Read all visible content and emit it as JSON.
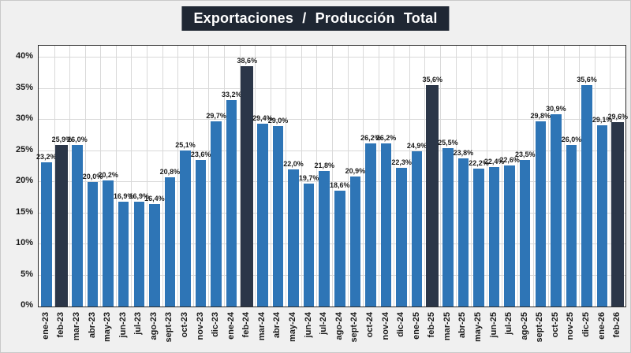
{
  "chart_data": {
    "type": "bar",
    "title": "Exportaciones / Producción Total",
    "categories": [
      "ene-23",
      "feb-23",
      "mar-23",
      "abr-23",
      "may-23",
      "jun-23",
      "jul-23",
      "ago-23",
      "sept-23",
      "oct-23",
      "nov-23",
      "dic-23",
      "ene-24",
      "feb-24",
      "mar-24",
      "abr-24",
      "may-24",
      "jun-24",
      "jul-24",
      "ago-24",
      "sept-24",
      "oct-24",
      "nov-24",
      "dic-24",
      "ene-25",
      "feb-25",
      "mar-25",
      "abr-25",
      "may-25",
      "jun-25",
      "jul-25",
      "ago-25",
      "sept-25",
      "oct-25",
      "nov-25",
      "dic-25",
      "ene-26",
      "feb-26"
    ],
    "values": [
      23.2,
      25.9,
      26.0,
      20.0,
      20.2,
      16.9,
      16.9,
      16.4,
      20.8,
      25.1,
      23.6,
      29.7,
      33.2,
      38.6,
      29.4,
      29.0,
      22.0,
      19.7,
      21.8,
      18.6,
      20.9,
      26.2,
      26.2,
      22.3,
      24.9,
      35.6,
      25.5,
      23.8,
      22.2,
      22.4,
      22.6,
      23.5,
      29.8,
      30.9,
      26.0,
      35.6,
      29.1,
      29.6
    ],
    "labels": [
      "23,2%",
      "25,9%",
      "26,0%",
      "20,0%",
      "20,2%",
      "16,9%",
      "16,9%",
      "16,4%",
      "20,8%",
      "25,1%",
      "23,6%",
      "29,7%",
      "33,2%",
      "38,6%",
      "29,4%",
      "29,0%",
      "22,0%",
      "19,7%",
      "21,8%",
      "18,6%",
      "20,9%",
      "26,2%",
      "26,2%",
      "22,3%",
      "24,9%",
      "35,6%",
      "25,5%",
      "23,8%",
      "22,2%",
      "22,4%",
      "22,6%",
      "23,5%",
      "29,8%",
      "30,9%",
      "26,0%",
      "35,6%",
      "29,1%",
      "29,6%"
    ],
    "highlight_indices": [
      1,
      13,
      25,
      37
    ],
    "y_axis": {
      "ticks": [
        "0%",
        "5%",
        "10%",
        "15%",
        "20%",
        "25%",
        "30%",
        "35%",
        "40%"
      ],
      "min": 0,
      "max": 40,
      "step": 5,
      "scale_max": 41.9
    },
    "grid": true,
    "legend": "none",
    "colors": {
      "bar": "#2E75B6",
      "highlight": "#2B3648",
      "title_bg": "#1F2733",
      "title_fg": "#FFFFFF",
      "grid": "#D9D9D9",
      "plot_border": "#2B2B2B",
      "background": "#F0F0F0",
      "value_label": "#1A1A1A",
      "axis_text": "#1A1A1A"
    }
  }
}
